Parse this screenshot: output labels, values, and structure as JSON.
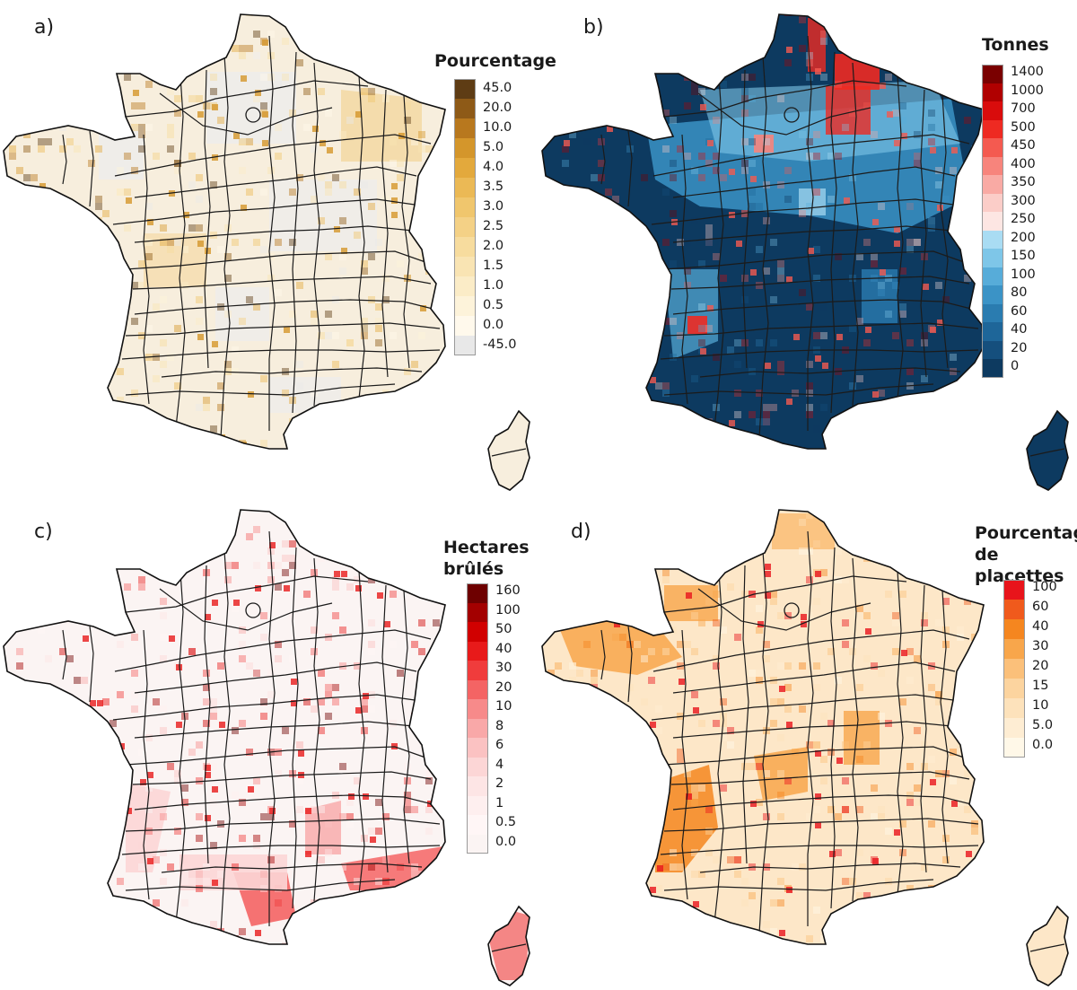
{
  "figure": {
    "footer_note": ""
  },
  "panels": [
    {
      "id": "a",
      "label": "a)",
      "legend_title": [
        "Pourcentage"
      ],
      "legend": [
        {
          "value": "45.0",
          "color": "#5e3c14"
        },
        {
          "value": "20.0",
          "color": "#8e5a17"
        },
        {
          "value": "10.0",
          "color": "#b8781e"
        },
        {
          "value": "5.0",
          "color": "#d4962b"
        },
        {
          "value": "4.0",
          "color": "#e3a93c"
        },
        {
          "value": "3.5",
          "color": "#ebb955"
        },
        {
          "value": "3.0",
          "color": "#f0c66d"
        },
        {
          "value": "2.5",
          "color": "#f4d186"
        },
        {
          "value": "2.0",
          "color": "#f7dc9e"
        },
        {
          "value": "1.5",
          "color": "#f9e4b3"
        },
        {
          "value": "1.0",
          "color": "#fbecc7"
        },
        {
          "value": "0.5",
          "color": "#fdf3da"
        },
        {
          "value": "0.0",
          "color": "#fff9ec"
        },
        {
          "value": "-45.0",
          "color": "#e8e8e8"
        }
      ]
    },
    {
      "id": "b",
      "label": "b)",
      "legend_title": [
        "Tonnes"
      ],
      "legend": [
        {
          "value": "1400",
          "color": "#7a0000"
        },
        {
          "value": "1000",
          "color": "#b00000"
        },
        {
          "value": "700",
          "color": "#d90c0c"
        },
        {
          "value": "500",
          "color": "#ee2a22"
        },
        {
          "value": "450",
          "color": "#f45a50"
        },
        {
          "value": "400",
          "color": "#f7847c"
        },
        {
          "value": "350",
          "color": "#f9aaa4"
        },
        {
          "value": "300",
          "color": "#fbcdc8"
        },
        {
          "value": "250",
          "color": "#fde6e3"
        },
        {
          "value": "200",
          "color": "#a9dcf3"
        },
        {
          "value": "150",
          "color": "#7ec6e8"
        },
        {
          "value": "100",
          "color": "#57acd9"
        },
        {
          "value": "80",
          "color": "#3b93c6"
        },
        {
          "value": "60",
          "color": "#2a7cb0"
        },
        {
          "value": "40",
          "color": "#1e6699"
        },
        {
          "value": "20",
          "color": "#154f7d"
        },
        {
          "value": "0",
          "color": "#0d3a60"
        }
      ]
    },
    {
      "id": "c",
      "label": "c)",
      "legend_title": [
        "Hectares",
        "brûlés"
      ],
      "legend": [
        {
          "value": "160",
          "color": "#6e0000"
        },
        {
          "value": "100",
          "color": "#a30000"
        },
        {
          "value": "50",
          "color": "#d10000"
        },
        {
          "value": "40",
          "color": "#e81a1a"
        },
        {
          "value": "30",
          "color": "#f03c3c"
        },
        {
          "value": "20",
          "color": "#f46464"
        },
        {
          "value": "10",
          "color": "#f78a8a"
        },
        {
          "value": "8",
          "color": "#f9a8a8"
        },
        {
          "value": "6",
          "color": "#fbc2c2"
        },
        {
          "value": "4",
          "color": "#fcd6d6"
        },
        {
          "value": "2",
          "color": "#fde5e5"
        },
        {
          "value": "1",
          "color": "#feefef"
        },
        {
          "value": "0.5",
          "color": "#fff6f6"
        },
        {
          "value": "0.0",
          "color": "#fbf4f3"
        }
      ]
    },
    {
      "id": "d",
      "label": "d)",
      "legend_title": [
        "Pourcentage",
        "de placettes"
      ],
      "legend": [
        {
          "value": "100",
          "color": "#e8141b"
        },
        {
          "value": "60",
          "color": "#f05a1c"
        },
        {
          "value": "40",
          "color": "#f5861f"
        },
        {
          "value": "30",
          "color": "#f8a64b"
        },
        {
          "value": "20",
          "color": "#fbc07a"
        },
        {
          "value": "15",
          "color": "#fcd49f"
        },
        {
          "value": "10",
          "color": "#fde2bb"
        },
        {
          "value": "5.0",
          "color": "#feedd3"
        },
        {
          "value": "0.0",
          "color": "#fff8e8"
        }
      ]
    }
  ]
}
